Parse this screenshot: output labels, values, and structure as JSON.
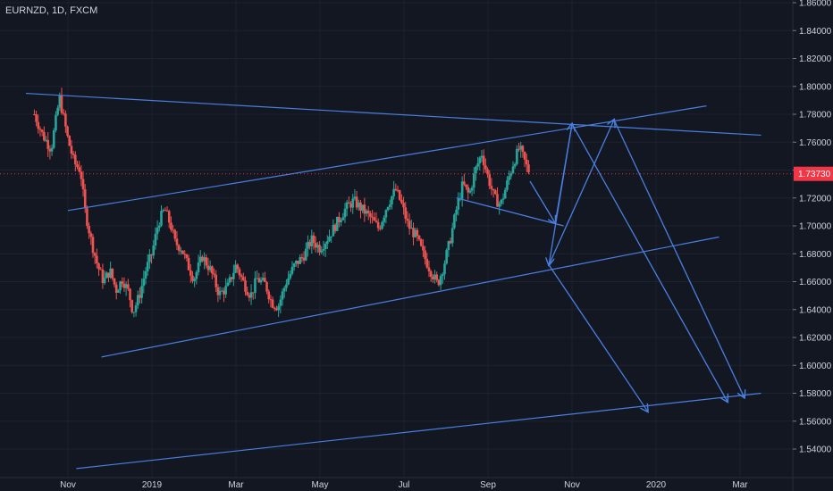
{
  "header": {
    "title": "EURNZD, 1D, FXCM"
  },
  "colors": {
    "background": "#131722",
    "up": "#26a69a",
    "down": "#ef5350",
    "drawing": "#4a7fe0",
    "price_label": "#f23645",
    "axis_text": "#d1d4dc"
  },
  "chart_data": {
    "type": "candlestick",
    "ylim": [
      1.53,
      1.865
    ],
    "y_ticks": [
      "1.86000",
      "1.84000",
      "1.82000",
      "1.80000",
      "1.78000",
      "1.76000",
      "1.74000",
      "1.72000",
      "1.70000",
      "1.68000",
      "1.66000",
      "1.64000",
      "1.62000",
      "1.60000",
      "1.58000",
      "1.56000",
      "1.54000"
    ],
    "y_tick_values": [
      1.86,
      1.84,
      1.82,
      1.8,
      1.78,
      1.76,
      1.74,
      1.72,
      1.7,
      1.68,
      1.66,
      1.64,
      1.62,
      1.6,
      1.58,
      1.56,
      1.54
    ],
    "x_ticks": [
      "Nov",
      "2019",
      "Mar",
      "May",
      "Jul",
      "Sep",
      "Nov",
      "2020",
      "Mar"
    ],
    "x_tick_months": [
      0,
      2,
      4,
      6,
      8,
      10,
      12,
      14,
      16
    ],
    "last_price": "1.73730",
    "last_price_value": 1.7373,
    "price_path_months": [
      [
        -0.8,
        1.78
      ],
      [
        -0.6,
        1.765
      ],
      [
        -0.4,
        1.755
      ],
      [
        -0.2,
        1.792
      ],
      [
        0.0,
        1.762
      ],
      [
        0.15,
        1.745
      ],
      [
        0.3,
        1.74
      ],
      [
        0.4,
        1.712
      ],
      [
        0.55,
        1.69
      ],
      [
        0.7,
        1.672
      ],
      [
        0.85,
        1.66
      ],
      [
        1.0,
        1.668
      ],
      [
        1.15,
        1.654
      ],
      [
        1.3,
        1.662
      ],
      [
        1.45,
        1.652
      ],
      [
        1.55,
        1.638
      ],
      [
        1.7,
        1.65
      ],
      [
        1.85,
        1.668
      ],
      [
        2.0,
        1.68
      ],
      [
        2.15,
        1.702
      ],
      [
        2.3,
        1.712
      ],
      [
        2.45,
        1.7
      ],
      [
        2.55,
        1.688
      ],
      [
        2.7,
        1.684
      ],
      [
        2.85,
        1.672
      ],
      [
        3.0,
        1.662
      ],
      [
        3.2,
        1.678
      ],
      [
        3.4,
        1.668
      ],
      [
        3.6,
        1.651
      ],
      [
        3.8,
        1.656
      ],
      [
        4.0,
        1.672
      ],
      [
        4.2,
        1.658
      ],
      [
        4.35,
        1.65
      ],
      [
        4.5,
        1.662
      ],
      [
        4.7,
        1.658
      ],
      [
        4.85,
        1.645
      ],
      [
        5.0,
        1.642
      ],
      [
        5.2,
        1.66
      ],
      [
        5.4,
        1.672
      ],
      [
        5.6,
        1.678
      ],
      [
        5.8,
        1.69
      ],
      [
        6.0,
        1.684
      ],
      [
        6.2,
        1.692
      ],
      [
        6.4,
        1.702
      ],
      [
        6.6,
        1.712
      ],
      [
        6.8,
        1.718
      ],
      [
        7.0,
        1.712
      ],
      [
        7.2,
        1.706
      ],
      [
        7.4,
        1.698
      ],
      [
        7.6,
        1.715
      ],
      [
        7.8,
        1.726
      ],
      [
        7.95,
        1.715
      ],
      [
        8.1,
        1.7
      ],
      [
        8.3,
        1.692
      ],
      [
        8.45,
        1.68
      ],
      [
        8.6,
        1.67
      ],
      [
        8.8,
        1.658
      ],
      [
        8.95,
        1.672
      ],
      [
        9.1,
        1.69
      ],
      [
        9.25,
        1.712
      ],
      [
        9.4,
        1.73
      ],
      [
        9.55,
        1.722
      ],
      [
        9.7,
        1.74
      ],
      [
        9.85,
        1.752
      ],
      [
        10.0,
        1.735
      ],
      [
        10.15,
        1.72
      ],
      [
        10.3,
        1.715
      ],
      [
        10.45,
        1.73
      ],
      [
        10.6,
        1.745
      ],
      [
        10.75,
        1.756
      ],
      [
        10.9,
        1.744
      ],
      [
        11.0,
        1.7373
      ]
    ],
    "trend_lines_data": [
      {
        "name": "upper-resistance",
        "p1": [
          -1.0,
          1.795
        ],
        "p2": [
          16.5,
          1.765
        ]
      },
      {
        "name": "channel-top",
        "p1": [
          0.0,
          1.711
        ],
        "p2": [
          15.2,
          1.786
        ]
      },
      {
        "name": "channel-bottom",
        "p1": [
          0.8,
          1.606
        ],
        "p2": [
          15.5,
          1.692
        ]
      },
      {
        "name": "lower-support",
        "p1": [
          0.2,
          1.526
        ],
        "p2": [
          16.5,
          1.58
        ]
      },
      {
        "name": "pullback",
        "p1": [
          9.25,
          1.72
        ],
        "p2": [
          11.8,
          1.7
        ]
      }
    ],
    "projection_arrows_data": [
      {
        "from": [
          11.0,
          1.732
        ],
        "to": [
          11.6,
          1.702
        ]
      },
      {
        "from": [
          11.6,
          1.702
        ],
        "to": [
          12.0,
          1.773
        ]
      },
      {
        "from": [
          12.0,
          1.773
        ],
        "to": [
          11.45,
          1.672
        ]
      },
      {
        "from": [
          11.45,
          1.672
        ],
        "to": [
          13.0,
          1.776
        ]
      },
      {
        "from": [
          11.45,
          1.672
        ],
        "to": [
          13.8,
          1.567
        ]
      },
      {
        "from": [
          12.0,
          1.773
        ],
        "to": [
          15.7,
          1.574
        ]
      },
      {
        "from": [
          13.0,
          1.776
        ],
        "to": [
          16.1,
          1.577
        ]
      }
    ]
  }
}
